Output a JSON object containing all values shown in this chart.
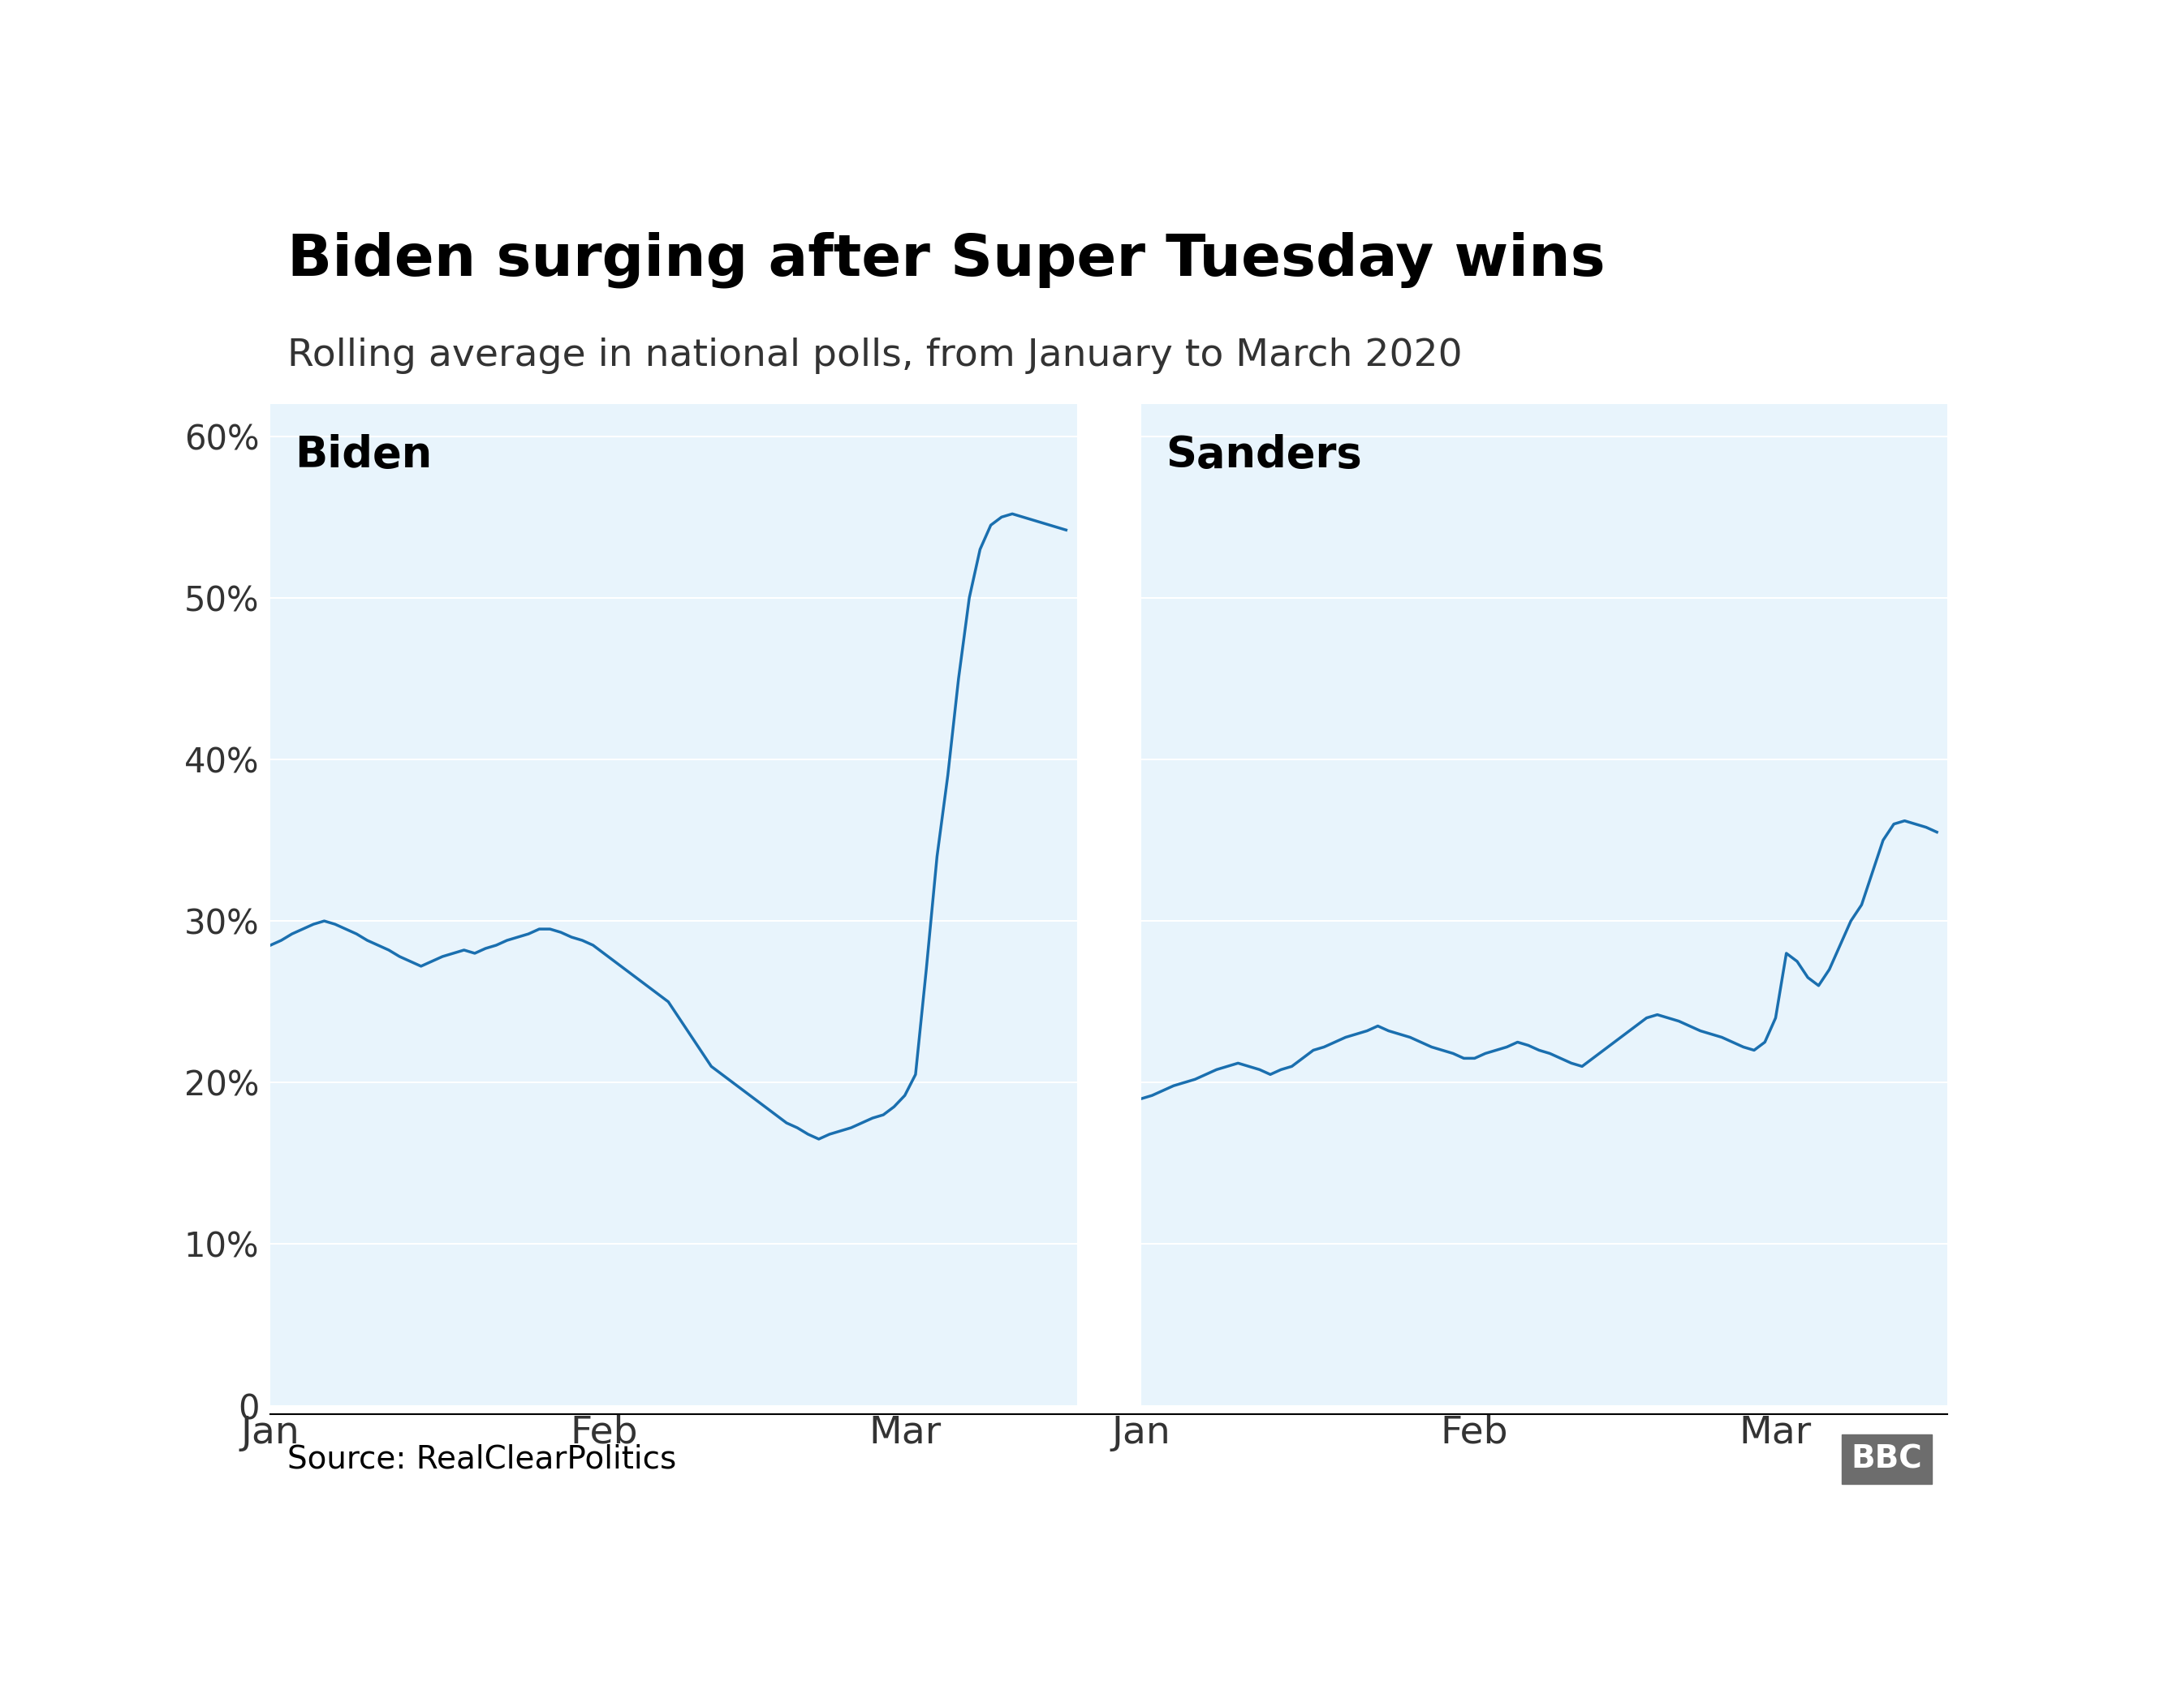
{
  "title": "Biden surging after Super Tuesday wins",
  "subtitle": "Rolling average in national polls, from January to March 2020",
  "source": "Source: RealClearPolitics",
  "bbc_logo": "BBC",
  "line_color": "#1a6faf",
  "bg_color": "#e8f4fc",
  "line_width": 2.5,
  "biden_label": "Biden",
  "sanders_label": "Sanders",
  "ylim": [
    0,
    62
  ],
  "yticks": [
    0,
    10,
    20,
    30,
    40,
    50,
    60
  ],
  "xlim_days": [
    0,
    75
  ],
  "xtick_positions": [
    0,
    31,
    59
  ],
  "xtick_labels": [
    "Jan",
    "Feb",
    "Mar"
  ],
  "biden_data": [
    28.5,
    28.8,
    29.2,
    29.5,
    29.8,
    30.0,
    29.8,
    29.5,
    29.2,
    28.8,
    28.5,
    28.2,
    27.8,
    27.5,
    27.2,
    27.5,
    27.8,
    28.0,
    28.2,
    28.0,
    28.3,
    28.5,
    28.8,
    29.0,
    29.2,
    29.5,
    29.5,
    29.3,
    29.0,
    28.8,
    28.5,
    28.0,
    27.5,
    27.0,
    26.5,
    26.0,
    25.5,
    25.0,
    24.0,
    23.0,
    22.0,
    21.0,
    20.5,
    20.0,
    19.5,
    19.0,
    18.5,
    18.0,
    17.5,
    17.2,
    16.8,
    16.5,
    16.8,
    17.0,
    17.2,
    17.5,
    17.8,
    18.0,
    18.5,
    19.2,
    20.5,
    27.0,
    34.0,
    39.0,
    45.0,
    50.0,
    53.0,
    54.5,
    55.0,
    55.2,
    55.0,
    54.8,
    54.6,
    54.4,
    54.2
  ],
  "sanders_data": [
    19.0,
    19.2,
    19.5,
    19.8,
    20.0,
    20.2,
    20.5,
    20.8,
    21.0,
    21.2,
    21.0,
    20.8,
    20.5,
    20.8,
    21.0,
    21.5,
    22.0,
    22.2,
    22.5,
    22.8,
    23.0,
    23.2,
    23.5,
    23.2,
    23.0,
    22.8,
    22.5,
    22.2,
    22.0,
    21.8,
    21.5,
    21.5,
    21.8,
    22.0,
    22.2,
    22.5,
    22.3,
    22.0,
    21.8,
    21.5,
    21.2,
    21.0,
    21.5,
    22.0,
    22.5,
    23.0,
    23.5,
    24.0,
    24.2,
    24.0,
    23.8,
    23.5,
    23.2,
    23.0,
    22.8,
    22.5,
    22.2,
    22.0,
    22.5,
    24.0,
    28.0,
    27.5,
    26.5,
    26.0,
    27.0,
    28.5,
    30.0,
    31.0,
    33.0,
    35.0,
    36.0,
    36.2,
    36.0,
    35.8,
    35.5
  ]
}
